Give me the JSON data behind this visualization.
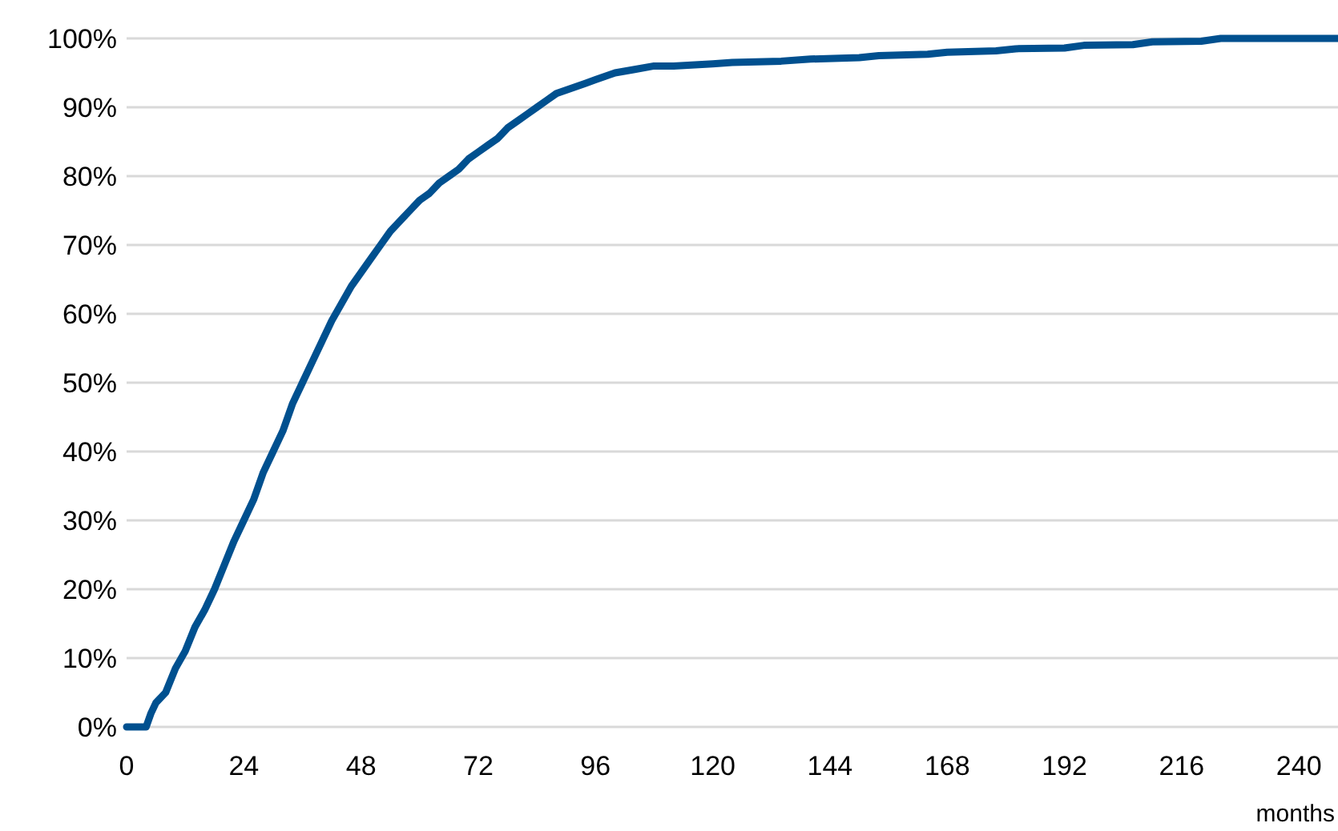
{
  "chart_data": {
    "type": "line",
    "xlabel": "months",
    "grid": "y",
    "xlim": [
      0,
      248
    ],
    "xticks": [
      0,
      24,
      48,
      72,
      96,
      120,
      144,
      168,
      192,
      216,
      240
    ],
    "ylim": [
      0,
      100
    ],
    "yticks": [
      {
        "value": 0,
        "label": "0%"
      },
      {
        "value": 10,
        "label": "10%"
      },
      {
        "value": 20,
        "label": "20%"
      },
      {
        "value": 30,
        "label": "30%"
      },
      {
        "value": 40,
        "label": "40%"
      },
      {
        "value": 50,
        "label": "50%"
      },
      {
        "value": 60,
        "label": "60%"
      },
      {
        "value": 70,
        "label": "70%"
      },
      {
        "value": 80,
        "label": "80%"
      },
      {
        "value": 90,
        "label": "90%"
      },
      {
        "value": 100,
        "label": "100%"
      }
    ],
    "series": [
      {
        "color": "#00508f",
        "x": [
          0,
          4,
          5,
          6,
          8,
          10,
          12,
          14,
          16,
          18,
          20,
          22,
          24,
          26,
          28,
          30,
          32,
          34,
          36,
          38,
          40,
          42,
          44,
          46,
          48,
          50,
          52,
          54,
          56,
          58,
          60,
          62,
          64,
          66,
          68,
          70,
          72,
          74,
          76,
          78,
          80,
          82,
          84,
          86,
          88,
          90,
          92,
          94,
          96,
          98,
          100,
          104,
          108,
          112,
          120,
          124,
          134,
          140,
          150,
          154,
          164,
          168,
          178,
          182,
          192,
          196,
          206,
          210,
          220,
          224,
          248
        ],
        "values": [
          0,
          0,
          2,
          3.5,
          5,
          8.5,
          11,
          14.5,
          17,
          20,
          23.5,
          27,
          30,
          33,
          37,
          40,
          43,
          47,
          50,
          53,
          56,
          59,
          61.5,
          64,
          66,
          68,
          70,
          72,
          73.5,
          75,
          76.5,
          77.5,
          79,
          80,
          81,
          82.5,
          83.5,
          84.5,
          85.5,
          87,
          88,
          89,
          90,
          91,
          92,
          92.5,
          93,
          93.5,
          94,
          94.5,
          95,
          95.5,
          96,
          96,
          96.3,
          96.5,
          96.7,
          97,
          97.2,
          97.5,
          97.7,
          98,
          98.2,
          98.5,
          98.6,
          99,
          99.1,
          99.5,
          99.6,
          100,
          100
        ]
      }
    ]
  }
}
